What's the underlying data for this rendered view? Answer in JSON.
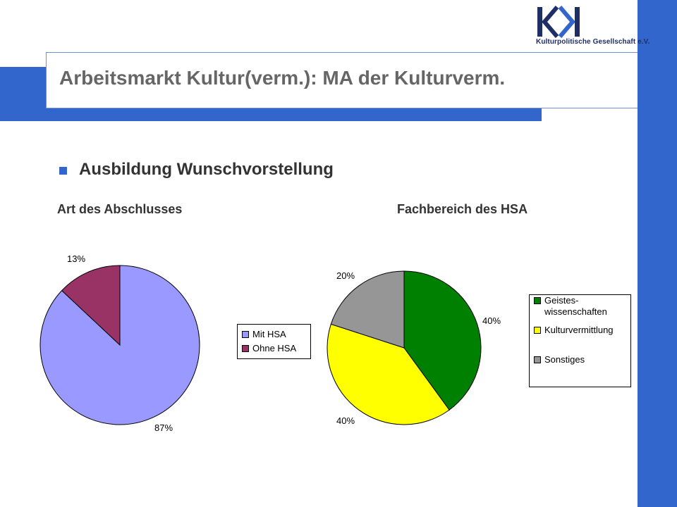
{
  "header": {
    "title": "Arbeitsmarkt Kultur(verm.): MA der Kulturverm.",
    "logo_text": "Kulturpolitische Gesellschaft e.V."
  },
  "main": {
    "bullet": "Ausbildung Wunschvorstellung",
    "left_heading": "Art des Abschlusses",
    "right_heading": "Fachbereich des HSA"
  },
  "colors": {
    "brand_blue": "#3366cc",
    "logo_blue": "#1f2f66"
  },
  "chart_data": [
    {
      "type": "pie",
      "title": "Art des Abschlusses",
      "categories": [
        "Mit HSA",
        "Ohne HSA"
      ],
      "values": [
        87,
        13
      ],
      "labels": [
        "87%",
        "13%"
      ],
      "colors": [
        "#9999ff",
        "#993366"
      ],
      "legend": {
        "entries": [
          "Mit HSA",
          "Ohne HSA"
        ],
        "placement": "right"
      }
    },
    {
      "type": "pie",
      "title": "Fachbereich des HSA",
      "categories": [
        "Geistes-\nwissenschaften",
        "Kulturvermittlung",
        "Sonstiges"
      ],
      "values": [
        40,
        40,
        20
      ],
      "labels": [
        "40%",
        "40%",
        "20%"
      ],
      "colors": [
        "#008000",
        "#ffff00",
        "#969696"
      ],
      "legend": {
        "entries": [
          "Geistes-\nwissenschaften",
          "Kulturvermittlung",
          "Sonstiges"
        ],
        "placement": "right"
      }
    }
  ]
}
